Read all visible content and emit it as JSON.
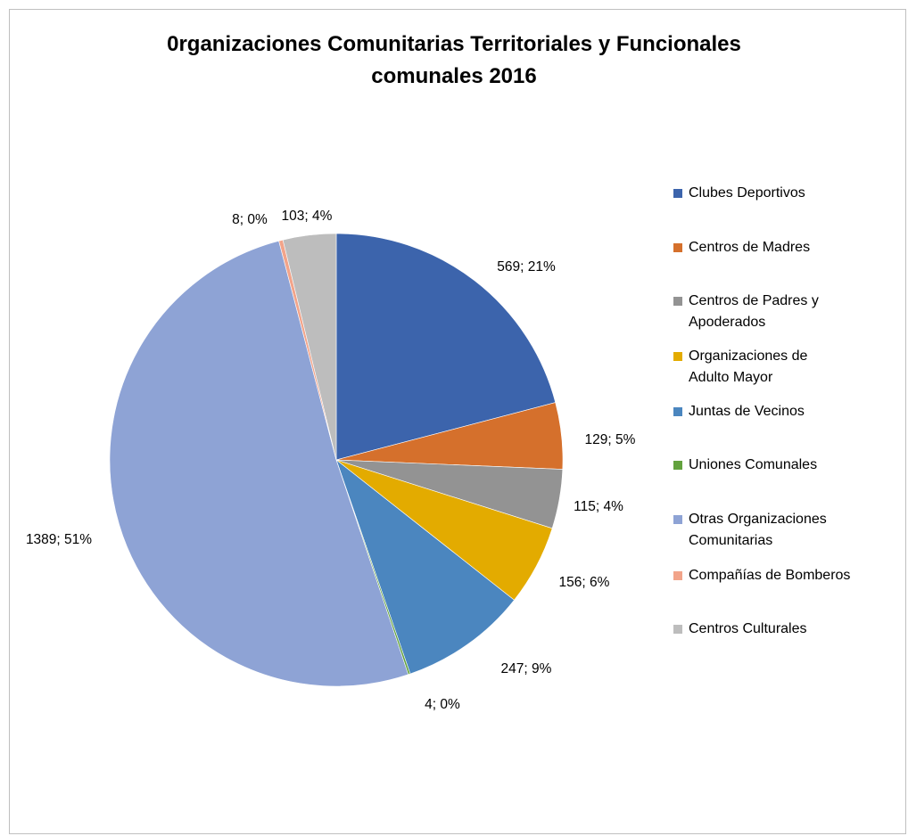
{
  "chart_data": {
    "type": "pie",
    "title": "0rganizaciones Comunitarias Territoriales y Funcionales comunales 2016",
    "title_lines": [
      "0rganizaciones Comunitarias Territoriales y Funcionales",
      "comunales 2016"
    ],
    "start_angle_deg": 0,
    "direction": "clockwise",
    "legend_position": "right",
    "slices": [
      {
        "name": "Clubes Deportivos",
        "legend_lines": [
          "Clubes Deportivos"
        ],
        "value": 569,
        "label": "569; 21%",
        "color": "#3C64AC"
      },
      {
        "name": "Centros de Madres",
        "legend_lines": [
          "Centros de Madres"
        ],
        "value": 129,
        "label": "129; 5%",
        "color": "#D5702C"
      },
      {
        "name": "Centros de Padres y Apoderados",
        "legend_lines": [
          "Centros de Padres y",
          "Apoderados"
        ],
        "value": 115,
        "label": "115; 4%",
        "color": "#939393"
      },
      {
        "name": "Organizaciones de Adulto Mayor",
        "legend_lines": [
          "Organizaciones de",
          "Adulto Mayor"
        ],
        "value": 156,
        "label": "156; 6%",
        "color": "#E3AB00"
      },
      {
        "name": "Juntas de Vecinos",
        "legend_lines": [
          "Juntas de Vecinos"
        ],
        "value": 247,
        "label": "247; 9%",
        "color": "#4B86BF"
      },
      {
        "name": "Uniones Comunales",
        "legend_lines": [
          "Uniones Comunales"
        ],
        "value": 4,
        "label": "4; 0%",
        "color": "#63A23E"
      },
      {
        "name": "Otras Organizaciones Comunitarias",
        "legend_lines": [
          "Otras Organizaciones",
          "Comunitarias"
        ],
        "value": 1389,
        "label": "1389; 51%",
        "color": "#8EA3D5"
      },
      {
        "name": "Compañías de Bomberos",
        "legend_lines": [
          "Compañías de Bomberos"
        ],
        "value": 8,
        "label": "8; 0%",
        "color": "#F2A48A"
      },
      {
        "name": "Centros Culturales",
        "legend_lines": [
          "Centros Culturales"
        ],
        "value": 103,
        "label": "103; 4%",
        "color": "#BDBDBD"
      }
    ]
  }
}
